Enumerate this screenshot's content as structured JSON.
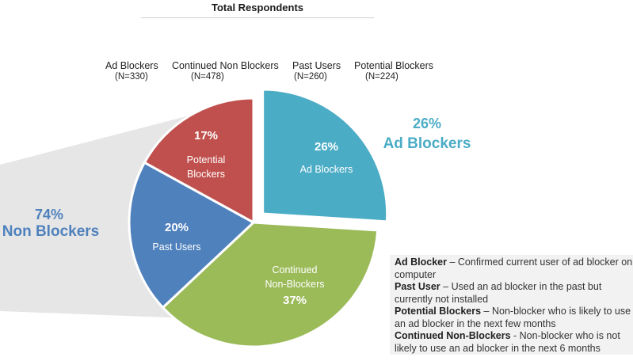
{
  "title": "Total Respondents",
  "groups": [
    {
      "label": "Ad Blockers",
      "n": "(N=330)"
    },
    {
      "label": "Continued Non Blockers",
      "n": "(N=478)"
    },
    {
      "label": "Past Users",
      "n": "(N=260)"
    },
    {
      "label": "Potential Blockers",
      "n": "(N=224)"
    }
  ],
  "summary": {
    "non_blockers_pct": "74%",
    "non_blockers_label": "Non Blockers",
    "ad_blockers_pct": "26%",
    "ad_blockers_label": "Ad Blockers"
  },
  "colors": {
    "ad_blockers": "#4bacc6",
    "continued_non_blockers": "#9bbb59",
    "past_users": "#4f81bd",
    "potential_blockers": "#c0504d",
    "ad_summary_text": "#4bacc6",
    "non_summary_text": "#4f81bd",
    "wedge": "#e6e6e6"
  },
  "chart_data": {
    "type": "pie",
    "title": "Total Respondents",
    "slices": [
      {
        "name": "Ad Blockers",
        "value": 26,
        "label": "26%",
        "text": "Ad Blockers",
        "color": "#4bacc6",
        "exploded": true
      },
      {
        "name": "Continued Non-Blockers",
        "value": 37,
        "label": "37%",
        "text": "Continued Non-Blockers",
        "color": "#9bbb59",
        "exploded": false
      },
      {
        "name": "Past Users",
        "value": 20,
        "label": "20%",
        "text": "Past Users",
        "color": "#4f81bd",
        "exploded": false
      },
      {
        "name": "Potential Blockers",
        "value": 17,
        "label": "17%",
        "text": "Potential Blockers",
        "color": "#c0504d",
        "exploded": false
      }
    ]
  },
  "slice_text": {
    "ad": {
      "pct": "26%",
      "line1": "Ad Blockers"
    },
    "cont": {
      "line1": "Continued",
      "line2": "Non-Blockers",
      "pct": "37%"
    },
    "past": {
      "pct": "20%",
      "line1": "Past Users"
    },
    "pot": {
      "pct": "17%",
      "line1": "Potential",
      "line2": "Blockers"
    }
  },
  "definitions": [
    {
      "term": "Ad Blocker",
      "sep": " – ",
      "text": "Confirmed current user of ad blocker on computer"
    },
    {
      "term": "Past User",
      "sep": " –  ",
      "text": "Used an ad blocker in the past but currently not installed"
    },
    {
      "term": "Potential Blockers",
      "sep": " – ",
      "text": "Non-blocker who is likely to use an ad blocker in the next few months"
    },
    {
      "term": "Continued Non-Blockers",
      "sep": " - ",
      "text": "Non-blocker who is not likely to use an ad blocker in the next 6 months"
    }
  ]
}
